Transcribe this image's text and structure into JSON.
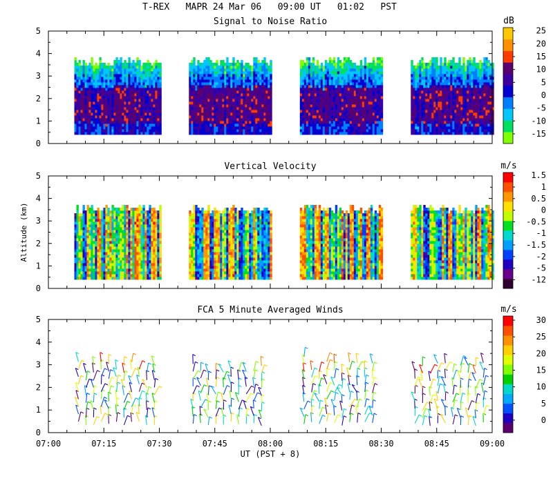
{
  "title": "T-REX   MAPR 24 Mar 06   09:00 UT   01:02   PST",
  "xaxis": {
    "ticks": [
      "07:00",
      "07:15",
      "07:30",
      "07:45",
      "08:00",
      "08:15",
      "08:30",
      "08:45",
      "09:00"
    ],
    "label": "UT  (PST + 8)"
  },
  "ylabel": "Altitude (km)",
  "chart_data": [
    {
      "type": "heatmap",
      "title": "Signal to Noise Ratio",
      "ylim": [
        0,
        5
      ],
      "yticks": [
        "0",
        "1",
        "2",
        "3",
        "4",
        "5"
      ],
      "data_time_blocks": [
        [
          "07:07",
          "07:30"
        ],
        [
          "07:38",
          "08:00"
        ],
        [
          "08:08",
          "08:30"
        ],
        [
          "08:38",
          "09:00"
        ]
      ],
      "data_altitude_range_km": [
        0.4,
        3.8
      ],
      "colorbar": {
        "unit": "dB",
        "colors": [
          "#80ff00",
          "#00e060",
          "#00c8ff",
          "#0080ff",
          "#0000d0",
          "#3c00a0",
          "#5a006e",
          "#ff3c00",
          "#ff9000",
          "#ffc800"
        ],
        "labels": [
          "-15",
          "-10",
          "-5",
          "0",
          "5",
          "10",
          "15",
          "20",
          "25"
        ]
      }
    },
    {
      "type": "heatmap",
      "title": "Vertical Velocity",
      "ylim": [
        0,
        5
      ],
      "yticks": [
        "0",
        "1",
        "2",
        "3",
        "4",
        "5"
      ],
      "data_time_blocks": [
        [
          "07:07",
          "07:30"
        ],
        [
          "07:38",
          "08:00"
        ],
        [
          "08:08",
          "08:30"
        ],
        [
          "08:38",
          "09:00"
        ]
      ],
      "data_altitude_range_km": [
        0.4,
        3.7
      ],
      "colorbar": {
        "unit": "m/s",
        "colors": [
          "#300030",
          "#6a008c",
          "#2000c0",
          "#0040ff",
          "#00a0ff",
          "#00d8d0",
          "#00e020",
          "#c0ff00",
          "#ffe000",
          "#ff9800",
          "#ff5000",
          "#ff0000"
        ],
        "labels": [
          "-12",
          "-5",
          "-2",
          "-1.5",
          "-1",
          "-0.5",
          "0",
          "0.5",
          "1",
          "1.5"
        ]
      }
    },
    {
      "type": "scatter",
      "title": "FCA 5 Minute Averaged Winds",
      "ylim": [
        0,
        5
      ],
      "yticks": [
        "0",
        "1",
        "2",
        "3",
        "4",
        "5"
      ],
      "data_time_blocks": [
        [
          "07:07",
          "07:30"
        ],
        [
          "07:38",
          "08:00"
        ],
        [
          "08:08",
          "08:30"
        ],
        [
          "08:38",
          "09:00"
        ]
      ],
      "data_altitude_range_km": [
        0.1,
        3.4
      ],
      "colorbar": {
        "unit": "m/s",
        "colors": [
          "#5a006e",
          "#2000c0",
          "#0050ff",
          "#00a8ff",
          "#00d8c8",
          "#00d000",
          "#80ff00",
          "#e0ff00",
          "#ffd000",
          "#ff9000",
          "#ff5000",
          "#ff0000"
        ],
        "labels": [
          "0",
          "5",
          "10",
          "15",
          "20",
          "25",
          "30"
        ]
      }
    }
  ]
}
